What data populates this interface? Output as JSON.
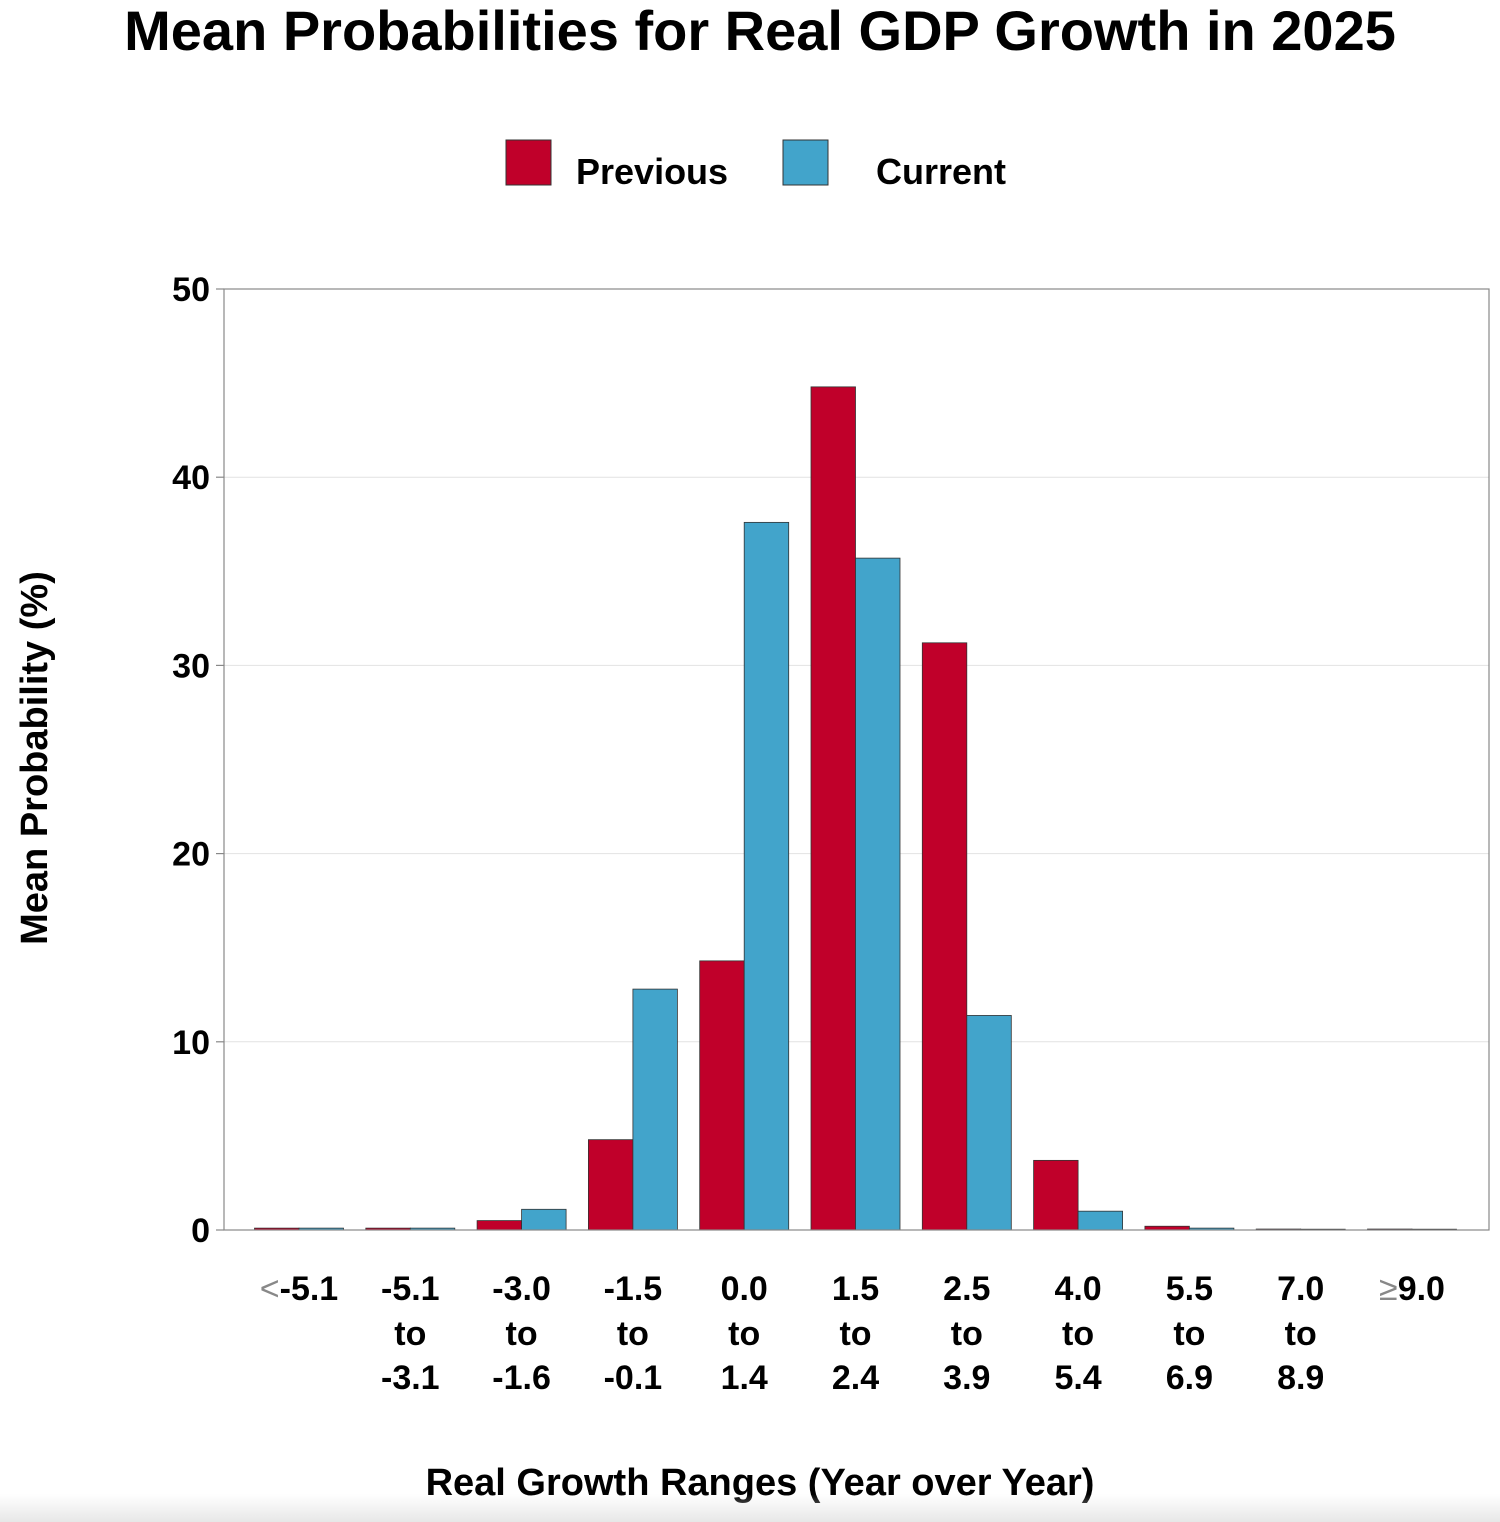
{
  "chart_data": {
    "type": "bar",
    "title": "Mean Probabilities for Real GDP Growth in 2025",
    "xlabel": "Real Growth Ranges (Year over Year)",
    "ylabel": "Mean Probability (%)",
    "ylim": [
      0,
      50
    ],
    "yticks": [
      "0",
      "10",
      "20",
      "30",
      "40",
      "50"
    ],
    "ytick_values": [
      0,
      10,
      20,
      30,
      40,
      50
    ],
    "grid": true,
    "legend_position": "top-center",
    "categories": [
      {
        "prefix": "<",
        "lines": [
          "-5.1"
        ]
      },
      {
        "prefix": "",
        "lines": [
          "-5.1",
          "to",
          "-3.1"
        ]
      },
      {
        "prefix": "",
        "lines": [
          "-3.0",
          "to",
          "-1.6"
        ]
      },
      {
        "prefix": "",
        "lines": [
          "-1.5",
          "to",
          "-0.1"
        ]
      },
      {
        "prefix": "",
        "lines": [
          "0.0",
          "to",
          "1.4"
        ]
      },
      {
        "prefix": "",
        "lines": [
          "1.5",
          "to",
          "2.4"
        ]
      },
      {
        "prefix": "",
        "lines": [
          "2.5",
          "to",
          "3.9"
        ]
      },
      {
        "prefix": "",
        "lines": [
          "4.0",
          "to",
          "5.4"
        ]
      },
      {
        "prefix": "",
        "lines": [
          "5.5",
          "to",
          "6.9"
        ]
      },
      {
        "prefix": "",
        "lines": [
          "7.0",
          "to",
          "8.9"
        ]
      },
      {
        "prefix": "≥",
        "lines": [
          "9.0"
        ]
      }
    ],
    "series": [
      {
        "name": "Previous",
        "color": "#c0002a",
        "values": [
          0.1,
          0.1,
          0.5,
          4.8,
          14.3,
          44.8,
          31.2,
          3.7,
          0.2,
          0.05,
          0.05
        ]
      },
      {
        "name": "Current",
        "color": "#42a4cb",
        "values": [
          0.1,
          0.1,
          1.1,
          12.8,
          37.6,
          35.7,
          11.4,
          1.0,
          0.1,
          0.0,
          0.0
        ]
      }
    ]
  }
}
